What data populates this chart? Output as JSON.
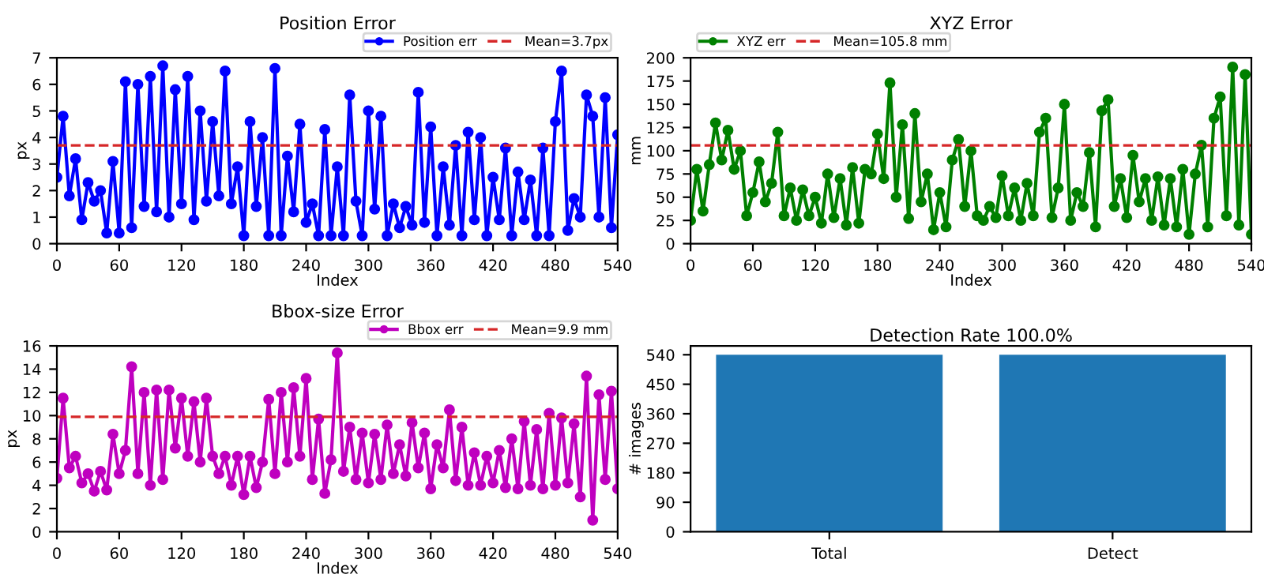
{
  "chart_data": [
    {
      "type": "line",
      "title": "Position Error",
      "xlabel": "Index",
      "ylabel": "px",
      "marker": "circle",
      "legend": "top right",
      "xlim": [
        0,
        540
      ],
      "xticks": [
        0,
        60,
        120,
        180,
        240,
        300,
        360,
        420,
        480,
        540
      ],
      "ylim": [
        0,
        7
      ],
      "yticks": [
        0,
        1,
        2,
        3,
        4,
        5,
        6,
        7
      ],
      "x": [
        0,
        6,
        12,
        18,
        24,
        30,
        36,
        42,
        48,
        54,
        60,
        66,
        72,
        78,
        84,
        90,
        96,
        102,
        108,
        114,
        120,
        126,
        132,
        138,
        144,
        150,
        156,
        162,
        168,
        174,
        180,
        186,
        192,
        198,
        204,
        210,
        216,
        222,
        228,
        234,
        240,
        246,
        252,
        258,
        264,
        270,
        276,
        282,
        288,
        294,
        300,
        306,
        312,
        318,
        324,
        330,
        336,
        342,
        348,
        354,
        360,
        366,
        372,
        378,
        384,
        390,
        396,
        402,
        408,
        414,
        420,
        426,
        432,
        438,
        444,
        450,
        456,
        462,
        468,
        474,
        480,
        486,
        492,
        498,
        504,
        510,
        516,
        522,
        528,
        534,
        540
      ],
      "series": [
        {
          "name": "Position err",
          "color": "#0000ff",
          "values": [
            2.5,
            4.8,
            1.8,
            3.2,
            0.9,
            2.3,
            1.6,
            2.0,
            0.4,
            3.1,
            0.4,
            6.1,
            0.6,
            6.0,
            1.4,
            6.3,
            1.2,
            6.7,
            1.0,
            5.8,
            1.5,
            6.3,
            0.9,
            5.0,
            1.6,
            4.6,
            1.8,
            6.5,
            1.5,
            2.9,
            0.3,
            4.6,
            1.4,
            4.0,
            0.3,
            6.6,
            0.3,
            3.3,
            1.2,
            4.5,
            0.8,
            1.5,
            0.3,
            4.3,
            0.3,
            2.9,
            0.3,
            5.6,
            1.6,
            0.3,
            5.0,
            1.3,
            4.8,
            0.3,
            1.5,
            0.6,
            1.4,
            0.7,
            5.7,
            0.8,
            4.4,
            0.3,
            2.9,
            0.7,
            3.7,
            0.3,
            4.2,
            0.9,
            4.0,
            0.3,
            2.5,
            0.9,
            3.6,
            0.3,
            2.7,
            0.9,
            2.4,
            0.3,
            3.6,
            0.3,
            4.6,
            6.5,
            0.5,
            1.7,
            1.0,
            5.6,
            4.8,
            1.0,
            5.5,
            0.6,
            4.1
          ]
        }
      ],
      "ref_lines": [
        {
          "axis": "y",
          "value": 3.7,
          "label": "Mean=3.7px",
          "color": "#d62728",
          "line_style": "dashed"
        }
      ]
    },
    {
      "type": "line",
      "title": "XYZ Error",
      "xlabel": "Index",
      "ylabel": "mm",
      "marker": "circle",
      "legend": "top left",
      "xlim": [
        0,
        540
      ],
      "xticks": [
        0,
        60,
        120,
        180,
        240,
        300,
        360,
        420,
        480,
        540
      ],
      "ylim": [
        0,
        200
      ],
      "yticks": [
        0,
        25,
        50,
        75,
        100,
        125,
        150,
        175,
        200
      ],
      "x": [
        0,
        6,
        12,
        18,
        24,
        30,
        36,
        42,
        48,
        54,
        60,
        66,
        72,
        78,
        84,
        90,
        96,
        102,
        108,
        114,
        120,
        126,
        132,
        138,
        144,
        150,
        156,
        162,
        168,
        174,
        180,
        186,
        192,
        198,
        204,
        210,
        216,
        222,
        228,
        234,
        240,
        246,
        252,
        258,
        264,
        270,
        276,
        282,
        288,
        294,
        300,
        306,
        312,
        318,
        324,
        330,
        336,
        342,
        348,
        354,
        360,
        366,
        372,
        378,
        384,
        390,
        396,
        402,
        408,
        414,
        420,
        426,
        432,
        438,
        444,
        450,
        456,
        462,
        468,
        474,
        480,
        486,
        492,
        498,
        504,
        510,
        516,
        522,
        528,
        534,
        540
      ],
      "series": [
        {
          "name": "XYZ err",
          "color": "#008000",
          "values": [
            25,
            80,
            35,
            85,
            130,
            90,
            122,
            80,
            100,
            30,
            55,
            88,
            45,
            65,
            120,
            30,
            60,
            25,
            58,
            30,
            50,
            22,
            75,
            28,
            70,
            20,
            82,
            22,
            80,
            75,
            118,
            70,
            173,
            50,
            128,
            27,
            140,
            45,
            75,
            15,
            55,
            18,
            90,
            112,
            40,
            100,
            30,
            25,
            40,
            28,
            73,
            30,
            60,
            25,
            65,
            30,
            120,
            135,
            28,
            60,
            150,
            25,
            55,
            40,
            98,
            18,
            143,
            155,
            40,
            70,
            28,
            95,
            45,
            70,
            25,
            72,
            20,
            70,
            18,
            80,
            10,
            75,
            106,
            18,
            135,
            158,
            30,
            190,
            20,
            182,
            10
          ]
        }
      ],
      "ref_lines": [
        {
          "axis": "y",
          "value": 105.8,
          "label": "Mean=105.8 mm",
          "color": "#d62728",
          "line_style": "dashed"
        }
      ]
    },
    {
      "type": "line",
      "title": "Bbox-size Error",
      "xlabel": "Index",
      "ylabel": "px",
      "marker": "circle",
      "legend": "top right",
      "xlim": [
        0,
        540
      ],
      "xticks": [
        0,
        60,
        120,
        180,
        240,
        300,
        360,
        420,
        480,
        540
      ],
      "ylim": [
        0,
        16
      ],
      "yticks": [
        0,
        2,
        4,
        6,
        8,
        10,
        12,
        14,
        16
      ],
      "x": [
        0,
        6,
        12,
        18,
        24,
        30,
        36,
        42,
        48,
        54,
        60,
        66,
        72,
        78,
        84,
        90,
        96,
        102,
        108,
        114,
        120,
        126,
        132,
        138,
        144,
        150,
        156,
        162,
        168,
        174,
        180,
        186,
        192,
        198,
        204,
        210,
        216,
        222,
        228,
        234,
        240,
        246,
        252,
        258,
        264,
        270,
        276,
        282,
        288,
        294,
        300,
        306,
        312,
        318,
        324,
        330,
        336,
        342,
        348,
        354,
        360,
        366,
        372,
        378,
        384,
        390,
        396,
        402,
        408,
        414,
        420,
        426,
        432,
        438,
        444,
        450,
        456,
        462,
        468,
        474,
        480,
        486,
        492,
        498,
        504,
        510,
        516,
        522,
        528,
        534,
        540
      ],
      "series": [
        {
          "name": "Bbox err",
          "color": "#bf00bf",
          "values": [
            4.6,
            11.5,
            5.5,
            6.5,
            4.2,
            5.0,
            3.5,
            5.2,
            3.6,
            8.4,
            5.0,
            7.0,
            14.2,
            5.0,
            12.0,
            4.0,
            12.2,
            4.5,
            12.2,
            7.2,
            11.5,
            6.5,
            11.2,
            6.0,
            11.5,
            6.5,
            5.0,
            6.5,
            4.0,
            6.5,
            3.2,
            6.5,
            3.8,
            6.0,
            11.4,
            5.0,
            12.0,
            6.0,
            12.4,
            6.5,
            13.2,
            4.5,
            9.7,
            3.3,
            6.2,
            15.4,
            5.2,
            9.0,
            4.5,
            8.5,
            4.2,
            8.4,
            4.5,
            9.2,
            5.0,
            7.5,
            4.8,
            9.4,
            5.5,
            8.5,
            3.7,
            7.5,
            5.5,
            10.5,
            4.4,
            9.0,
            4.0,
            6.8,
            4.0,
            6.5,
            4.2,
            7.0,
            3.8,
            8.0,
            3.7,
            9.5,
            4.0,
            8.8,
            3.7,
            10.2,
            4.0,
            9.8,
            4.2,
            9.3,
            3.0,
            13.4,
            1.0,
            11.8,
            4.5,
            12.1,
            3.7
          ]
        }
      ],
      "ref_lines": [
        {
          "axis": "y",
          "value": 9.9,
          "label": "Mean=9.9 mm",
          "color": "#d62728",
          "line_style": "dashed"
        }
      ]
    },
    {
      "type": "bar",
      "title": "Detection Rate 100.0%",
      "ylabel": "# images",
      "categories": [
        "Total",
        "Detect"
      ],
      "values": [
        540,
        540
      ],
      "color": "#1f77b4",
      "ylim": [
        0,
        567
      ],
      "yticks": [
        0,
        90,
        180,
        270,
        360,
        450,
        540
      ]
    }
  ]
}
